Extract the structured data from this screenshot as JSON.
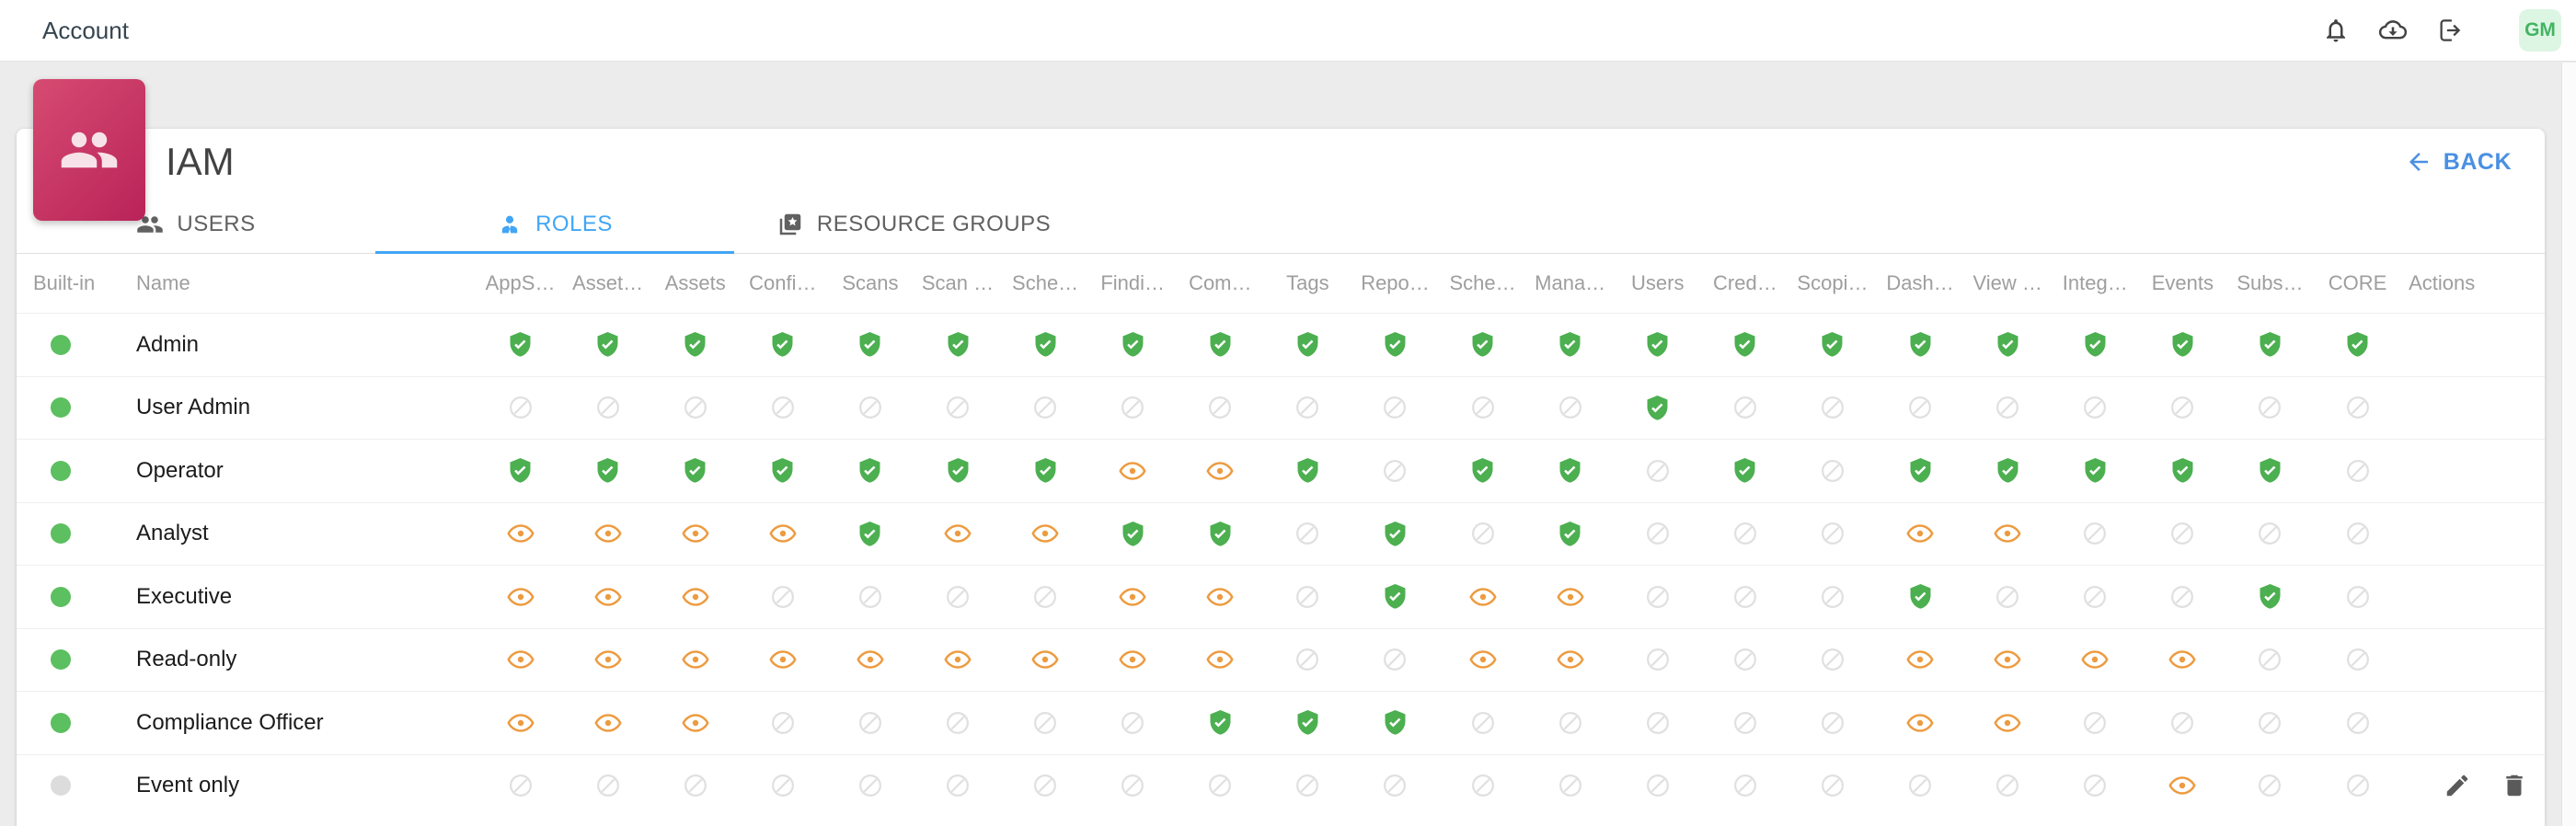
{
  "topbar": {
    "title": "Account",
    "icons": [
      {
        "name": "notifications-bell-icon"
      },
      {
        "name": "cloud-download-icon"
      },
      {
        "name": "logout-icon"
      }
    ],
    "avatar_initials": "GM"
  },
  "page": {
    "title": "IAM",
    "back_label": "BACK",
    "tabs": [
      {
        "label": "USERS",
        "icon": "users-group-icon",
        "active": false
      },
      {
        "label": "ROLES",
        "icon": "role-person-icon",
        "active": true
      },
      {
        "label": "RESOURCE GROUPS",
        "icon": "resource-groups-icon",
        "active": false
      }
    ]
  },
  "table": {
    "built_in_header": "Built-in",
    "name_header": "Name",
    "actions_header": "Actions",
    "permission_headers": [
      "AppS…",
      "Asset…",
      "Assets",
      "Confi…",
      "Scans",
      "Scan …",
      "Sche…",
      "Findi…",
      "Com…",
      "Tags",
      "Repo…",
      "Sche…",
      "Mana…",
      "Users",
      "Cred…",
      "Scopi…",
      "Dash…",
      "View …",
      "Integ…",
      "Events",
      "Subs…",
      "CORE"
    ],
    "permission_legend": {
      "full": "full-access-check",
      "view": "view-only-eye",
      "none": "no-access"
    },
    "rows": [
      {
        "name": "Admin",
        "built_in": true,
        "permissions": [
          "full",
          "full",
          "full",
          "full",
          "full",
          "full",
          "full",
          "full",
          "full",
          "full",
          "full",
          "full",
          "full",
          "full",
          "full",
          "full",
          "full",
          "full",
          "full",
          "full",
          "full",
          "full"
        ],
        "actions": []
      },
      {
        "name": "User Admin",
        "built_in": true,
        "permissions": [
          "none",
          "none",
          "none",
          "none",
          "none",
          "none",
          "none",
          "none",
          "none",
          "none",
          "none",
          "none",
          "none",
          "full",
          "none",
          "none",
          "none",
          "none",
          "none",
          "none",
          "none",
          "none"
        ],
        "actions": []
      },
      {
        "name": "Operator",
        "built_in": true,
        "permissions": [
          "full",
          "full",
          "full",
          "full",
          "full",
          "full",
          "full",
          "view",
          "view",
          "full",
          "none",
          "full",
          "full",
          "none",
          "full",
          "none",
          "full",
          "full",
          "full",
          "full",
          "full",
          "none"
        ],
        "actions": []
      },
      {
        "name": "Analyst",
        "built_in": true,
        "permissions": [
          "view",
          "view",
          "view",
          "view",
          "full",
          "view",
          "view",
          "full",
          "full",
          "none",
          "full",
          "none",
          "full",
          "none",
          "none",
          "none",
          "view",
          "view",
          "none",
          "none",
          "none",
          "none"
        ],
        "actions": []
      },
      {
        "name": "Executive",
        "built_in": true,
        "permissions": [
          "view",
          "view",
          "view",
          "none",
          "none",
          "none",
          "none",
          "view",
          "view",
          "none",
          "full",
          "view",
          "view",
          "none",
          "none",
          "none",
          "full",
          "none",
          "none",
          "none",
          "full",
          "none"
        ],
        "actions": []
      },
      {
        "name": "Read-only",
        "built_in": true,
        "permissions": [
          "view",
          "view",
          "view",
          "view",
          "view",
          "view",
          "view",
          "view",
          "view",
          "none",
          "none",
          "view",
          "view",
          "none",
          "none",
          "none",
          "view",
          "view",
          "view",
          "view",
          "none",
          "none"
        ],
        "actions": []
      },
      {
        "name": "Compliance Officer",
        "built_in": true,
        "permissions": [
          "view",
          "view",
          "view",
          "none",
          "none",
          "none",
          "none",
          "none",
          "full",
          "full",
          "full",
          "none",
          "none",
          "none",
          "none",
          "none",
          "view",
          "view",
          "none",
          "none",
          "none",
          "none"
        ],
        "actions": []
      },
      {
        "name": "Event only",
        "built_in": false,
        "permissions": [
          "none",
          "none",
          "none",
          "none",
          "none",
          "none",
          "none",
          "none",
          "none",
          "none",
          "none",
          "none",
          "none",
          "none",
          "none",
          "none",
          "none",
          "none",
          "none",
          "view",
          "none",
          "none"
        ],
        "actions": [
          "edit",
          "delete"
        ]
      }
    ]
  },
  "colors": {
    "accent_blue": "#42a5f5",
    "granted_green": "#4caf50",
    "view_orange": "#ed9b40",
    "denied_gray": "#e0e0e0",
    "tile_pink_start": "#d64b72",
    "tile_pink_end": "#b92358",
    "built_in_dot_green": "#5cbf60",
    "built_in_dot_gray": "#dcdcdc"
  }
}
